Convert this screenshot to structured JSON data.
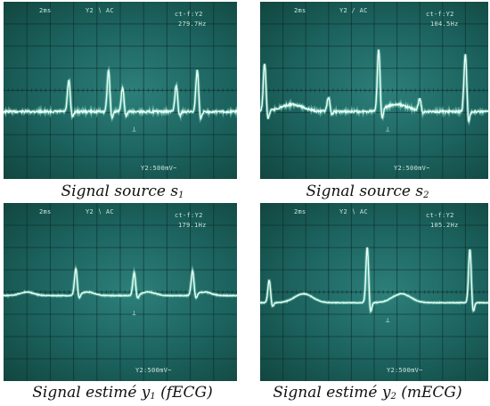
{
  "panels": [
    {
      "readout": {
        "timebase": "2ms",
        "coupling": "Y2 ∖ AC",
        "cursor": "ct-f:Y2",
        "frequency": "279.7Hz",
        "scale": "Y2:500mV~"
      },
      "caption": {
        "text": "Signal source ",
        "symbol": "s",
        "sub": "1",
        "suffix": ""
      },
      "trace": {
        "baseline": 0.62,
        "noise": 0.012,
        "peaks": [
          {
            "x": 0.28,
            "h": 0.18,
            "w": 0.006
          },
          {
            "x": 0.45,
            "h": 0.24,
            "w": 0.006
          },
          {
            "x": 0.51,
            "h": 0.14,
            "w": 0.006
          },
          {
            "x": 0.74,
            "h": 0.15,
            "w": 0.006
          },
          {
            "x": 0.83,
            "h": 0.24,
            "w": 0.006
          }
        ],
        "waves": []
      }
    },
    {
      "readout": {
        "timebase": "2ms",
        "coupling": "Y2 ∕ AC",
        "cursor": "ct-f:Y2",
        "frequency": "104.5Hz",
        "scale": "Y2:500mV~"
      },
      "caption": {
        "text": "Signal source ",
        "symbol": "s",
        "sub": "2",
        "suffix": ""
      },
      "trace": {
        "baseline": 0.62,
        "noise": 0.012,
        "peaks": [
          {
            "x": 0.02,
            "h": 0.28,
            "w": 0.006
          },
          {
            "x": 0.3,
            "h": 0.08,
            "w": 0.006
          },
          {
            "x": 0.52,
            "h": 0.35,
            "w": 0.006
          },
          {
            "x": 0.7,
            "h": 0.07,
            "w": 0.006
          },
          {
            "x": 0.9,
            "h": 0.33,
            "w": 0.006
          }
        ],
        "waves": [
          {
            "x": 0.14,
            "h": 0.04,
            "w": 0.05
          },
          {
            "x": 0.6,
            "h": 0.04,
            "w": 0.05
          }
        ]
      }
    },
    {
      "readout": {
        "timebase": "2ms",
        "coupling": "Y2 ∖ AC",
        "cursor": "ct-f:Y2",
        "frequency": "179.1Hz",
        "scale": "Y2:500mV~"
      },
      "caption": {
        "text": "Signal estimé ",
        "symbol": "y",
        "sub": "1",
        "suffix": " (fECG)"
      },
      "trace": {
        "baseline": 0.52,
        "noise": 0.004,
        "peaks": [
          {
            "x": 0.31,
            "h": 0.15,
            "w": 0.006
          },
          {
            "x": 0.56,
            "h": 0.13,
            "w": 0.006
          },
          {
            "x": 0.81,
            "h": 0.14,
            "w": 0.006
          }
        ],
        "waves": [
          {
            "x": 0.1,
            "h": 0.02,
            "w": 0.03
          },
          {
            "x": 0.36,
            "h": 0.02,
            "w": 0.03
          },
          {
            "x": 0.62,
            "h": 0.02,
            "w": 0.03
          },
          {
            "x": 0.86,
            "h": 0.02,
            "w": 0.03
          }
        ]
      }
    },
    {
      "readout": {
        "timebase": "2ms",
        "coupling": "Y2 ∖ AC",
        "cursor": "ct-f:Y2",
        "frequency": "105.2Hz",
        "scale": "Y2:500mV~"
      },
      "caption": {
        "text": "Signal estimé ",
        "symbol": "y",
        "sub": "2",
        "suffix": " (mECG)"
      },
      "trace": {
        "baseline": 0.56,
        "noise": 0.003,
        "peaks": [
          {
            "x": 0.04,
            "h": 0.13,
            "w": 0.006
          },
          {
            "x": 0.47,
            "h": 0.32,
            "w": 0.006
          },
          {
            "x": 0.92,
            "h": 0.31,
            "w": 0.006
          }
        ],
        "waves": [
          {
            "x": 0.19,
            "h": 0.05,
            "w": 0.04
          },
          {
            "x": 0.62,
            "h": 0.05,
            "w": 0.04
          }
        ]
      }
    }
  ]
}
